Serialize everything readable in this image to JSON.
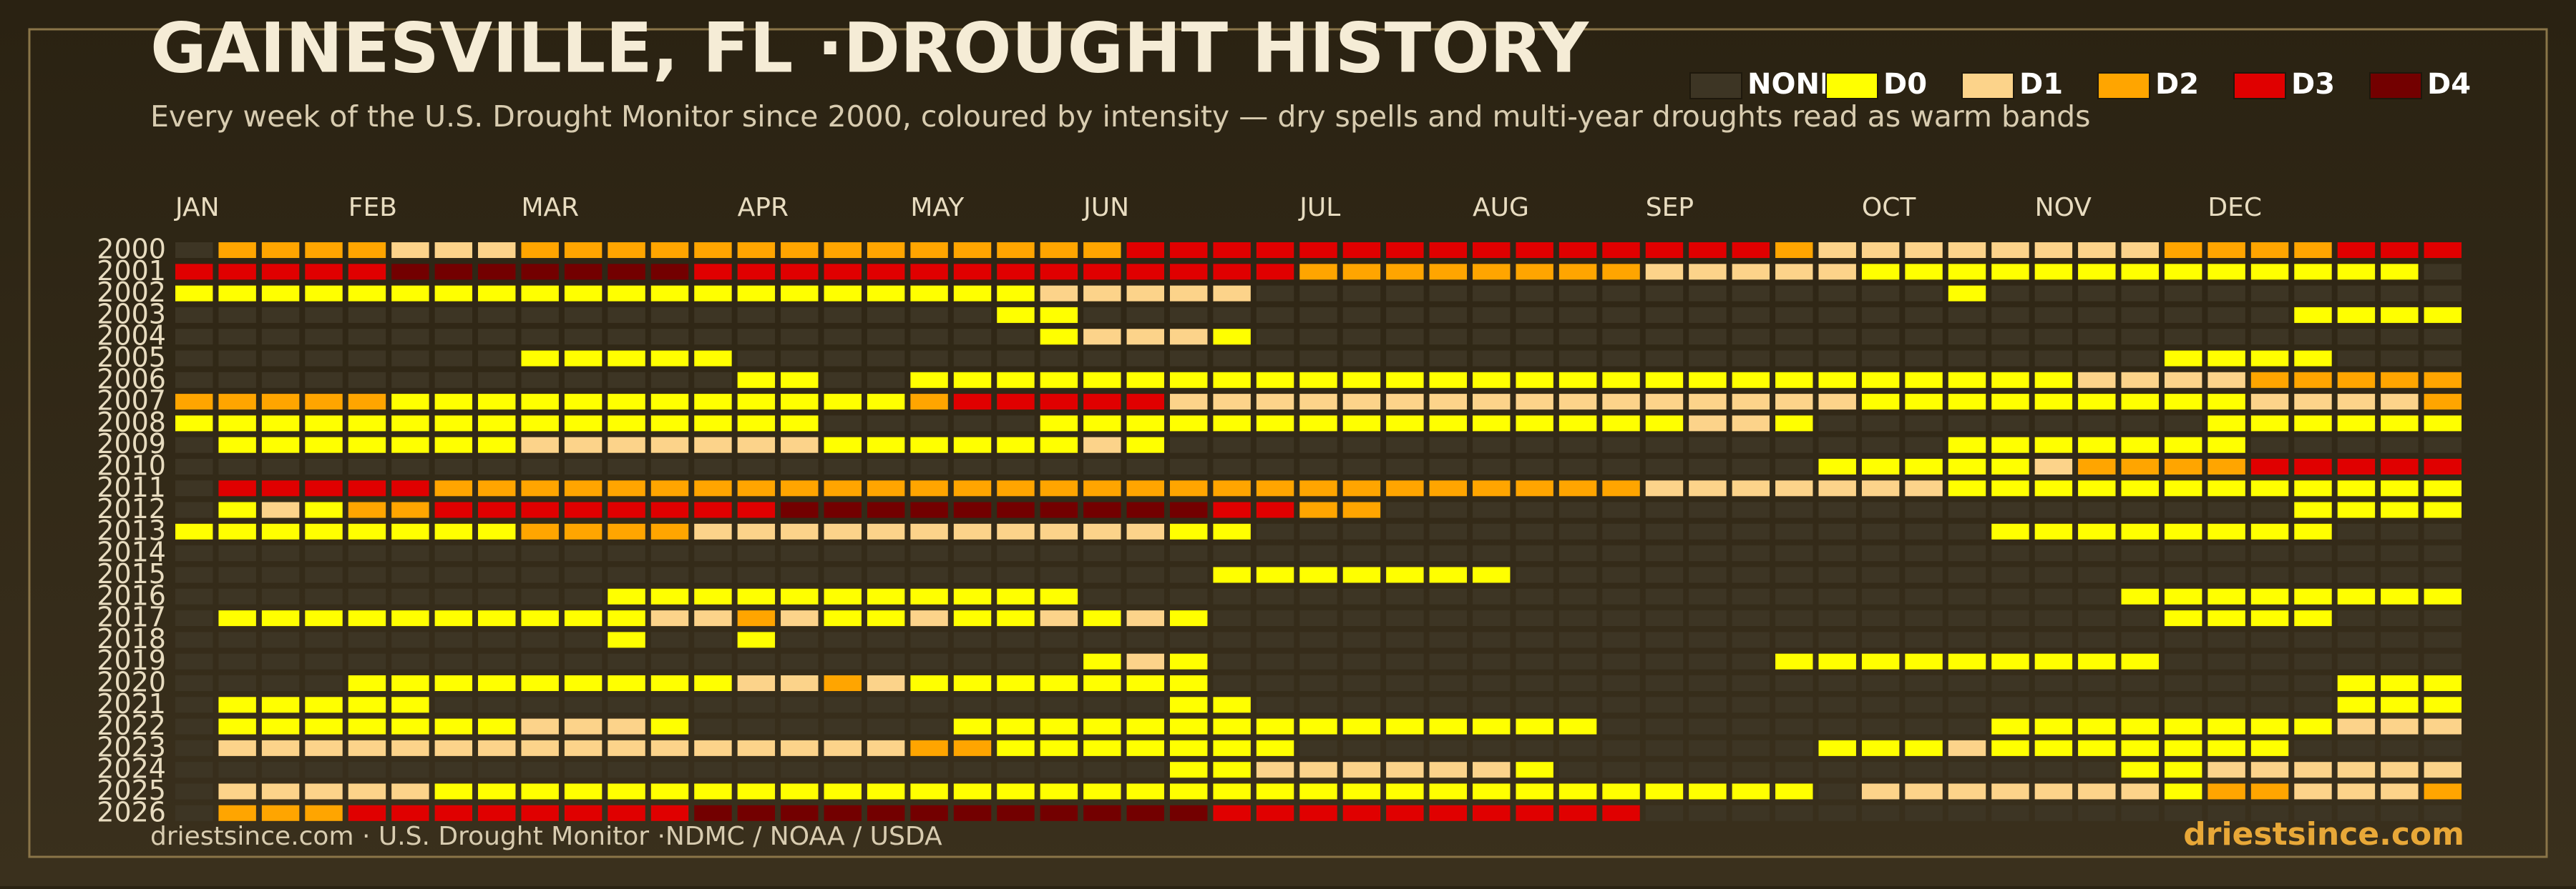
{
  "chart_data": {
    "type": "heatmap",
    "title": "GAINESVILLE, FL ·DROUGHT HISTORY",
    "subtitle": "Every week of the U.S. Drought Monitor since 2000, coloured by intensity — dry spells and multi-year droughts read as warm bands",
    "source": "driestsince.com  · U.S. Drought Monitor ·NDMC / NOAA / USDA",
    "brand": "driestsince.com",
    "levels": [
      {
        "name": "NONE",
        "color": "#3d3524"
      },
      {
        "name": "D0",
        "color": "#ffff00"
      },
      {
        "name": "D1",
        "color": "#fcd38a"
      },
      {
        "name": "D2",
        "color": "#ffa500"
      },
      {
        "name": "D3",
        "color": "#e00000"
      },
      {
        "name": "D4",
        "color": "#730000"
      }
    ],
    "xlim": [
      0,
      53
    ],
    "xticks": [
      {
        "value": 0,
        "label": "JAN"
      },
      {
        "value": 4,
        "label": "FEB"
      },
      {
        "value": 8,
        "label": "MAR"
      },
      {
        "value": 13,
        "label": "APR"
      },
      {
        "value": 17,
        "label": "MAY"
      },
      {
        "value": 21,
        "label": "JUN"
      },
      {
        "value": 26,
        "label": "JUL"
      },
      {
        "value": 30,
        "label": "AUG"
      },
      {
        "value": 34,
        "label": "SEP"
      },
      {
        "value": 39,
        "label": "OCT"
      },
      {
        "value": 43,
        "label": "NOV"
      },
      {
        "value": 47,
        "label": "DEC"
      }
    ],
    "y": [
      2000,
      2001,
      2002,
      2003,
      2004,
      2005,
      2006,
      2007,
      2008,
      2009,
      2010,
      2011,
      2012,
      2013,
      2014,
      2015,
      2016,
      2017,
      2018,
      2019,
      2020,
      2021,
      2022,
      2023,
      2024,
      2025,
      2026
    ],
    "z": [
      [
        0,
        3,
        3,
        3,
        3,
        2,
        2,
        2,
        3,
        3,
        3,
        3,
        3,
        3,
        3,
        3,
        3,
        3,
        3,
        3,
        3,
        3,
        4,
        4,
        4,
        4,
        4,
        4,
        4,
        4,
        4,
        4,
        4,
        4,
        4,
        4,
        4,
        3,
        2,
        2,
        2,
        2,
        2,
        2,
        2,
        2,
        3,
        3,
        3,
        3,
        4,
        4,
        4
      ],
      [
        4,
        4,
        4,
        4,
        4,
        5,
        5,
        5,
        5,
        5,
        5,
        5,
        4,
        4,
        4,
        4,
        4,
        4,
        4,
        4,
        4,
        4,
        4,
        4,
        4,
        4,
        3,
        3,
        3,
        3,
        3,
        3,
        3,
        3,
        2,
        2,
        2,
        2,
        2,
        1,
        1,
        1,
        1,
        1,
        1,
        1,
        1,
        1,
        1,
        1,
        1,
        1,
        0
      ],
      [
        1,
        1,
        1,
        1,
        1,
        1,
        1,
        1,
        1,
        1,
        1,
        1,
        1,
        1,
        1,
        1,
        1,
        1,
        1,
        1,
        2,
        2,
        2,
        2,
        2,
        0,
        0,
        0,
        0,
        0,
        0,
        0,
        0,
        0,
        0,
        0,
        0,
        0,
        0,
        0,
        0,
        1,
        0,
        0,
        0,
        0,
        0,
        0,
        0,
        0,
        0,
        0,
        0
      ],
      [
        0,
        0,
        0,
        0,
        0,
        0,
        0,
        0,
        0,
        0,
        0,
        0,
        0,
        0,
        0,
        0,
        0,
        0,
        0,
        1,
        1,
        0,
        0,
        0,
        0,
        0,
        0,
        0,
        0,
        0,
        0,
        0,
        0,
        0,
        0,
        0,
        0,
        0,
        0,
        0,
        0,
        0,
        0,
        0,
        0,
        0,
        0,
        0,
        0,
        1,
        1,
        1,
        1
      ],
      [
        0,
        0,
        0,
        0,
        0,
        0,
        0,
        0,
        0,
        0,
        0,
        0,
        0,
        0,
        0,
        0,
        0,
        0,
        0,
        0,
        1,
        2,
        2,
        2,
        1,
        0,
        0,
        0,
        0,
        0,
        0,
        0,
        0,
        0,
        0,
        0,
        0,
        0,
        0,
        0,
        0,
        0,
        0,
        0,
        0,
        0,
        0,
        0,
        0,
        0,
        0,
        0,
        0
      ],
      [
        0,
        0,
        0,
        0,
        0,
        0,
        0,
        0,
        1,
        1,
        1,
        1,
        1,
        0,
        0,
        0,
        0,
        0,
        0,
        0,
        0,
        0,
        0,
        0,
        0,
        0,
        0,
        0,
        0,
        0,
        0,
        0,
        0,
        0,
        0,
        0,
        0,
        0,
        0,
        0,
        0,
        0,
        0,
        0,
        0,
        0,
        1,
        1,
        1,
        1,
        0,
        0,
        0
      ],
      [
        0,
        0,
        0,
        0,
        0,
        0,
        0,
        0,
        0,
        0,
        0,
        0,
        0,
        1,
        1,
        0,
        0,
        1,
        1,
        1,
        1,
        1,
        1,
        1,
        1,
        1,
        1,
        1,
        1,
        1,
        1,
        1,
        1,
        1,
        1,
        1,
        1,
        1,
        1,
        1,
        1,
        1,
        1,
        1,
        2,
        2,
        2,
        2,
        3,
        3,
        3,
        3,
        3
      ],
      [
        3,
        3,
        3,
        3,
        3,
        1,
        1,
        1,
        1,
        1,
        1,
        1,
        1,
        1,
        1,
        1,
        1,
        3,
        4,
        4,
        4,
        4,
        4,
        2,
        2,
        2,
        2,
        2,
        2,
        2,
        2,
        2,
        2,
        2,
        2,
        2,
        2,
        2,
        2,
        1,
        1,
        1,
        1,
        1,
        1,
        1,
        1,
        1,
        2,
        2,
        2,
        2,
        3
      ],
      [
        1,
        1,
        1,
        1,
        1,
        1,
        1,
        1,
        1,
        1,
        1,
        1,
        1,
        1,
        1,
        0,
        0,
        0,
        0,
        0,
        1,
        1,
        1,
        1,
        1,
        1,
        1,
        1,
        1,
        1,
        1,
        1,
        1,
        1,
        1,
        2,
        2,
        1,
        0,
        0,
        0,
        0,
        0,
        0,
        0,
        0,
        0,
        1,
        1,
        1,
        1,
        1,
        1
      ],
      [
        0,
        1,
        1,
        1,
        1,
        1,
        1,
        1,
        2,
        2,
        2,
        2,
        2,
        2,
        2,
        1,
        1,
        1,
        1,
        1,
        1,
        2,
        1,
        0,
        0,
        0,
        0,
        0,
        0,
        0,
        0,
        0,
        0,
        0,
        0,
        0,
        0,
        0,
        0,
        0,
        0,
        1,
        1,
        1,
        1,
        1,
        1,
        1,
        0,
        0,
        0,
        0,
        0
      ],
      [
        0,
        0,
        0,
        0,
        0,
        0,
        0,
        0,
        0,
        0,
        0,
        0,
        0,
        0,
        0,
        0,
        0,
        0,
        0,
        0,
        0,
        0,
        0,
        0,
        0,
        0,
        0,
        0,
        0,
        0,
        0,
        0,
        0,
        0,
        0,
        0,
        0,
        0,
        1,
        1,
        1,
        1,
        1,
        2,
        3,
        3,
        3,
        3,
        4,
        4,
        4,
        4,
        4
      ],
      [
        0,
        4,
        4,
        4,
        4,
        4,
        3,
        3,
        3,
        3,
        3,
        3,
        3,
        3,
        3,
        3,
        3,
        3,
        3,
        3,
        3,
        3,
        3,
        3,
        3,
        3,
        3,
        3,
        3,
        3,
        3,
        3,
        3,
        3,
        2,
        2,
        2,
        2,
        2,
        2,
        2,
        1,
        1,
        1,
        1,
        1,
        1,
        1,
        1,
        1,
        1,
        1,
        1
      ],
      [
        0,
        1,
        2,
        1,
        3,
        3,
        4,
        4,
        4,
        4,
        4,
        4,
        4,
        4,
        5,
        5,
        5,
        5,
        5,
        5,
        5,
        5,
        5,
        5,
        4,
        4,
        3,
        3,
        0,
        0,
        0,
        0,
        0,
        0,
        0,
        0,
        0,
        0,
        0,
        0,
        0,
        0,
        0,
        0,
        0,
        0,
        0,
        0,
        0,
        1,
        1,
        1,
        1
      ],
      [
        1,
        1,
        1,
        1,
        1,
        1,
        1,
        1,
        3,
        3,
        3,
        3,
        2,
        2,
        2,
        2,
        2,
        2,
        2,
        2,
        2,
        2,
        2,
        1,
        1,
        0,
        0,
        0,
        0,
        0,
        0,
        0,
        0,
        0,
        0,
        0,
        0,
        0,
        0,
        0,
        0,
        0,
        1,
        1,
        1,
        1,
        1,
        1,
        1,
        1,
        0,
        0,
        0
      ],
      [
        0,
        0,
        0,
        0,
        0,
        0,
        0,
        0,
        0,
        0,
        0,
        0,
        0,
        0,
        0,
        0,
        0,
        0,
        0,
        0,
        0,
        0,
        0,
        0,
        0,
        0,
        0,
        0,
        0,
        0,
        0,
        0,
        0,
        0,
        0,
        0,
        0,
        0,
        0,
        0,
        0,
        0,
        0,
        0,
        0,
        0,
        0,
        0,
        0,
        0,
        0,
        0,
        0
      ],
      [
        0,
        0,
        0,
        0,
        0,
        0,
        0,
        0,
        0,
        0,
        0,
        0,
        0,
        0,
        0,
        0,
        0,
        0,
        0,
        0,
        0,
        0,
        0,
        0,
        1,
        1,
        1,
        1,
        1,
        1,
        1,
        0,
        0,
        0,
        0,
        0,
        0,
        0,
        0,
        0,
        0,
        0,
        0,
        0,
        0,
        0,
        0,
        0,
        0,
        0,
        0,
        0,
        0
      ],
      [
        0,
        0,
        0,
        0,
        0,
        0,
        0,
        0,
        0,
        0,
        1,
        1,
        1,
        1,
        1,
        1,
        1,
        1,
        1,
        1,
        1,
        0,
        0,
        0,
        0,
        0,
        0,
        0,
        0,
        0,
        0,
        0,
        0,
        0,
        0,
        0,
        0,
        0,
        0,
        0,
        0,
        0,
        0,
        0,
        0,
        1,
        1,
        1,
        1,
        1,
        1,
        1,
        1
      ],
      [
        0,
        1,
        1,
        1,
        1,
        1,
        1,
        1,
        1,
        1,
        1,
        2,
        2,
        3,
        2,
        1,
        1,
        2,
        1,
        1,
        2,
        1,
        2,
        1,
        0,
        0,
        0,
        0,
        0,
        0,
        0,
        0,
        0,
        0,
        0,
        0,
        0,
        0,
        0,
        0,
        0,
        0,
        0,
        0,
        0,
        0,
        1,
        1,
        1,
        1,
        0,
        0,
        0
      ],
      [
        0,
        0,
        0,
        0,
        0,
        0,
        0,
        0,
        0,
        0,
        1,
        0,
        0,
        1,
        0,
        0,
        0,
        0,
        0,
        0,
        0,
        0,
        0,
        0,
        0,
        0,
        0,
        0,
        0,
        0,
        0,
        0,
        0,
        0,
        0,
        0,
        0,
        0,
        0,
        0,
        0,
        0,
        0,
        0,
        0,
        0,
        0,
        0,
        0,
        0,
        0,
        0,
        0
      ],
      [
        0,
        0,
        0,
        0,
        0,
        0,
        0,
        0,
        0,
        0,
        0,
        0,
        0,
        0,
        0,
        0,
        0,
        0,
        0,
        0,
        0,
        1,
        2,
        1,
        0,
        0,
        0,
        0,
        0,
        0,
        0,
        0,
        0,
        0,
        0,
        0,
        0,
        1,
        1,
        1,
        1,
        1,
        1,
        1,
        1,
        1,
        0,
        0,
        0,
        0,
        0,
        0,
        0
      ],
      [
        0,
        0,
        0,
        0,
        1,
        1,
        1,
        1,
        1,
        1,
        1,
        1,
        1,
        2,
        2,
        3,
        2,
        1,
        1,
        1,
        1,
        1,
        1,
        1,
        0,
        0,
        0,
        0,
        0,
        0,
        0,
        0,
        0,
        0,
        0,
        0,
        0,
        0,
        0,
        0,
        0,
        0,
        0,
        0,
        0,
        0,
        0,
        0,
        0,
        0,
        1,
        1,
        1
      ],
      [
        0,
        1,
        1,
        1,
        1,
        1,
        0,
        0,
        0,
        0,
        0,
        0,
        0,
        0,
        0,
        0,
        0,
        0,
        0,
        0,
        0,
        0,
        0,
        1,
        1,
        0,
        0,
        0,
        0,
        0,
        0,
        0,
        0,
        0,
        0,
        0,
        0,
        0,
        0,
        0,
        0,
        0,
        0,
        0,
        0,
        0,
        0,
        0,
        0,
        0,
        1,
        1,
        1
      ],
      [
        0,
        1,
        1,
        1,
        1,
        1,
        1,
        1,
        2,
        2,
        2,
        1,
        0,
        0,
        0,
        0,
        0,
        0,
        1,
        1,
        1,
        1,
        1,
        1,
        1,
        1,
        1,
        1,
        1,
        1,
        1,
        1,
        1,
        0,
        0,
        0,
        0,
        0,
        0,
        0,
        0,
        0,
        1,
        1,
        1,
        1,
        1,
        1,
        1,
        1,
        2,
        2,
        2
      ],
      [
        0,
        2,
        2,
        2,
        2,
        2,
        2,
        2,
        2,
        2,
        2,
        2,
        2,
        2,
        2,
        2,
        2,
        3,
        3,
        1,
        1,
        1,
        1,
        1,
        1,
        1,
        0,
        0,
        0,
        0,
        0,
        0,
        0,
        0,
        0,
        0,
        0,
        0,
        1,
        1,
        1,
        2,
        1,
        1,
        1,
        1,
        1,
        1,
        1,
        0,
        0,
        0,
        0
      ],
      [
        0,
        0,
        0,
        0,
        0,
        0,
        0,
        0,
        0,
        0,
        0,
        0,
        0,
        0,
        0,
        0,
        0,
        0,
        0,
        0,
        0,
        0,
        0,
        1,
        1,
        2,
        2,
        2,
        2,
        2,
        2,
        1,
        0,
        0,
        0,
        0,
        0,
        0,
        0,
        0,
        0,
        0,
        0,
        0,
        0,
        1,
        1,
        2,
        2,
        2,
        2,
        2,
        2
      ],
      [
        0,
        2,
        2,
        2,
        2,
        2,
        1,
        1,
        1,
        1,
        1,
        1,
        1,
        1,
        1,
        1,
        1,
        1,
        1,
        1,
        1,
        1,
        1,
        1,
        1,
        1,
        1,
        1,
        1,
        1,
        1,
        1,
        1,
        1,
        1,
        1,
        1,
        1,
        0,
        2,
        2,
        2,
        2,
        2,
        2,
        2,
        1,
        3,
        3,
        2,
        2,
        2,
        3
      ],
      [
        0,
        3,
        3,
        3,
        4,
        4,
        4,
        4,
        4,
        4,
        4,
        4,
        5,
        5,
        5,
        5,
        5,
        5,
        5,
        5,
        5,
        5,
        5,
        5,
        4,
        4,
        4,
        4,
        4,
        4,
        4,
        4,
        4,
        4,
        0,
        0,
        0,
        0,
        0,
        0,
        0,
        0,
        0,
        0,
        0,
        0,
        0,
        0,
        0,
        0,
        0,
        0,
        0
      ]
    ]
  }
}
